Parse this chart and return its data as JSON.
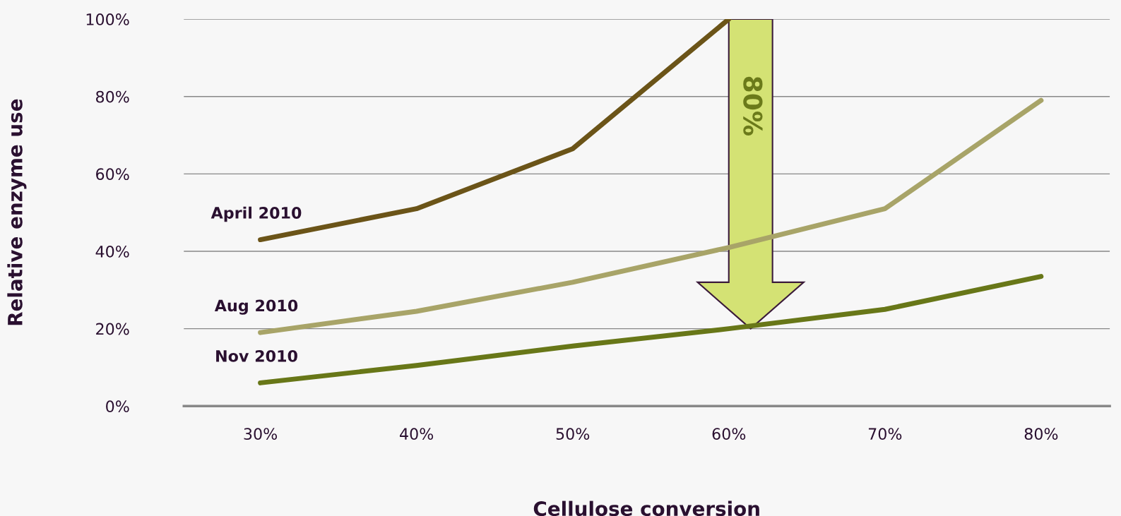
{
  "chart_data": {
    "type": "line",
    "xlabel": "Cellulose conversion",
    "ylabel": "Relative enzyme use",
    "categories": [
      "30%",
      "40%",
      "50%",
      "60%",
      "70%",
      "80%"
    ],
    "series": [
      {
        "name": "April 2010",
        "color": "#6b5418",
        "values": [
          43,
          51,
          66.5,
          100,
          null,
          null
        ]
      },
      {
        "name": "Aug 2010",
        "color": "#a8a468",
        "values": [
          19,
          24.5,
          32,
          41,
          51,
          79
        ]
      },
      {
        "name": "Nov 2010",
        "color": "#687718",
        "values": [
          6,
          10.5,
          15.5,
          20,
          25,
          33.5
        ]
      }
    ],
    "ylim": [
      0,
      100
    ],
    "yticks": [
      {
        "value": 0,
        "label": "0%"
      },
      {
        "value": 20,
        "label": "20%"
      },
      {
        "value": 40,
        "label": "40%"
      },
      {
        "value": 60,
        "label": "60%"
      },
      {
        "value": 80,
        "label": "80%"
      },
      {
        "value": 100,
        "label": "100%"
      }
    ],
    "grid": "y",
    "legend": false,
    "marker": "none",
    "line_style": "solid",
    "annotations": [
      "80%"
    ]
  }
}
